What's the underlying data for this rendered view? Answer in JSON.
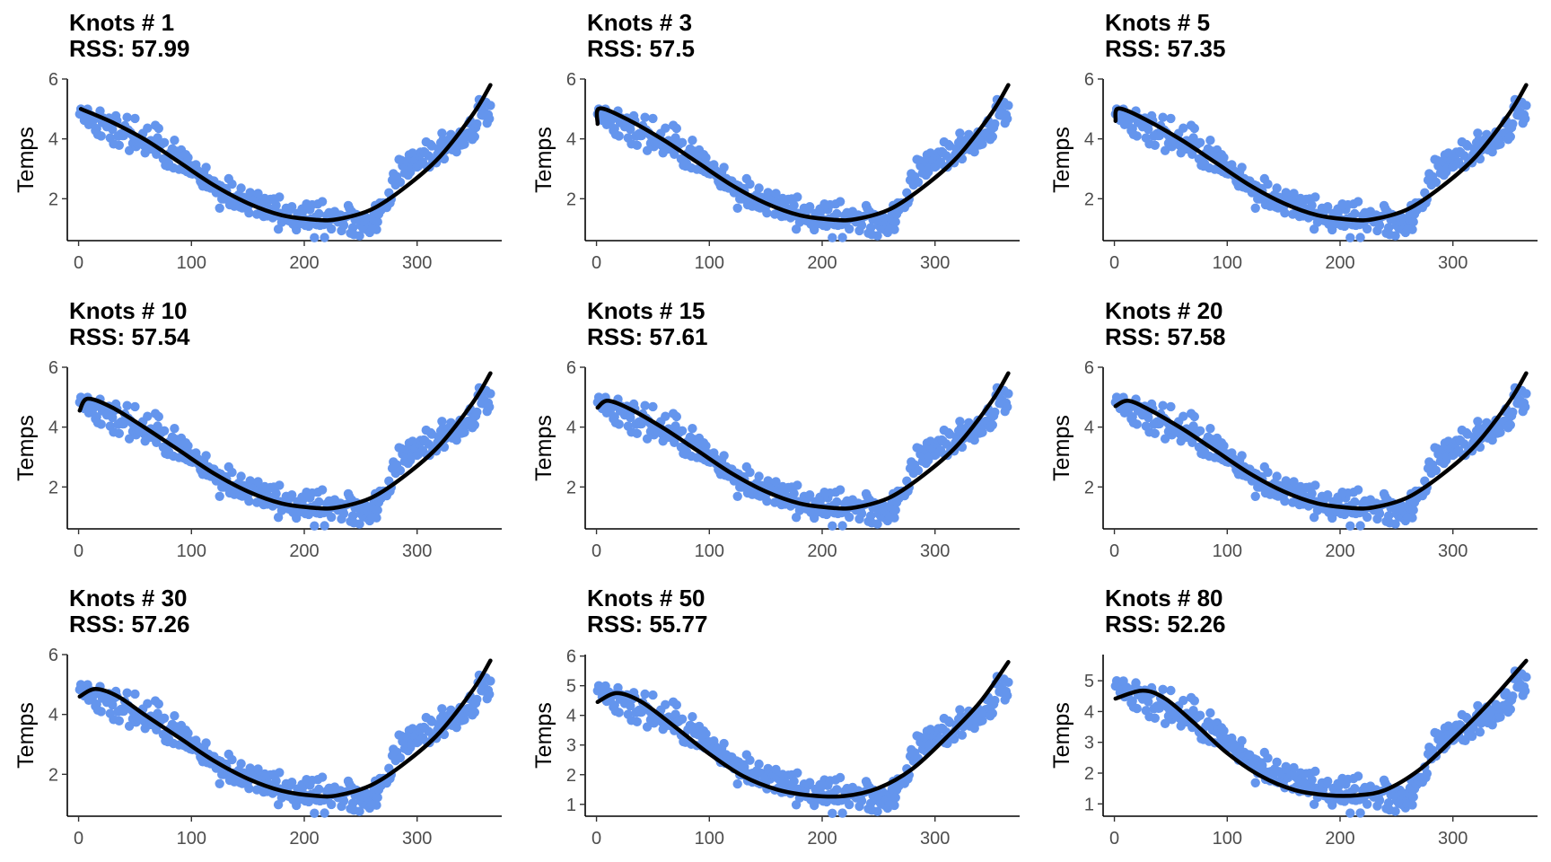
{
  "colors": {
    "points": "#6495ED",
    "fit": "#000000",
    "background": "#ffffff"
  },
  "chart_data": [
    {
      "type": "scatter",
      "title": "Knots # 1",
      "subtitle": "RSS: 57.99",
      "xlabel": "",
      "ylabel": "Temps",
      "xlim": [
        -10,
        375
      ],
      "ylim": [
        0.6,
        6.0
      ],
      "xticks": [
        0,
        100,
        200,
        300
      ],
      "yticks": [
        2,
        4,
        6
      ],
      "grid": false,
      "fit": {
        "x": [
          2,
          30,
          60,
          90,
          120,
          150,
          180,
          210,
          230,
          260,
          290,
          320,
          350,
          365
        ],
        "y": [
          5.0,
          4.55,
          3.95,
          3.2,
          2.45,
          1.85,
          1.45,
          1.3,
          1.32,
          1.65,
          2.4,
          3.4,
          4.85,
          5.8
        ]
      }
    },
    {
      "type": "scatter",
      "title": "Knots # 3",
      "subtitle": "RSS: 57.5",
      "xlabel": "",
      "ylabel": "Temps",
      "xlim": [
        -10,
        375
      ],
      "ylim": [
        0.6,
        6.0
      ],
      "xticks": [
        0,
        100,
        200,
        300
      ],
      "yticks": [
        2,
        4,
        6
      ],
      "grid": false,
      "fit": {
        "x": [
          1,
          3,
          30,
          60,
          90,
          120,
          150,
          180,
          210,
          230,
          260,
          290,
          320,
          350,
          365
        ],
        "y": [
          4.5,
          5.02,
          4.6,
          3.95,
          3.2,
          2.45,
          1.85,
          1.45,
          1.3,
          1.32,
          1.65,
          2.4,
          3.4,
          4.85,
          5.8
        ]
      }
    },
    {
      "type": "scatter",
      "title": "Knots # 5",
      "subtitle": "RSS: 57.35",
      "xlabel": "",
      "ylabel": "Temps",
      "xlim": [
        -10,
        375
      ],
      "ylim": [
        0.6,
        6.0
      ],
      "xticks": [
        0,
        100,
        200,
        300
      ],
      "yticks": [
        2,
        4,
        6
      ],
      "grid": false,
      "fit": {
        "x": [
          1,
          4,
          30,
          60,
          90,
          120,
          150,
          180,
          210,
          230,
          260,
          290,
          320,
          350,
          365
        ],
        "y": [
          4.6,
          5.02,
          4.6,
          3.95,
          3.2,
          2.45,
          1.85,
          1.45,
          1.3,
          1.32,
          1.65,
          2.4,
          3.4,
          4.85,
          5.8
        ]
      }
    },
    {
      "type": "scatter",
      "title": "Knots # 10",
      "subtitle": "RSS: 57.54",
      "xlabel": "",
      "ylabel": "Temps",
      "xlim": [
        -10,
        375
      ],
      "ylim": [
        0.6,
        6.0
      ],
      "xticks": [
        0,
        100,
        200,
        300
      ],
      "yticks": [
        2,
        4,
        6
      ],
      "grid": false,
      "fit": {
        "x": [
          1,
          8,
          30,
          60,
          90,
          120,
          150,
          180,
          210,
          230,
          260,
          290,
          320,
          350,
          365
        ],
        "y": [
          4.55,
          4.95,
          4.65,
          3.95,
          3.2,
          2.45,
          1.85,
          1.45,
          1.3,
          1.32,
          1.65,
          2.4,
          3.4,
          4.85,
          5.8
        ]
      }
    },
    {
      "type": "scatter",
      "title": "Knots # 15",
      "subtitle": "RSS: 57.61",
      "xlabel": "",
      "ylabel": "Temps",
      "xlim": [
        -10,
        375
      ],
      "ylim": [
        0.6,
        6.0
      ],
      "xticks": [
        0,
        100,
        200,
        300
      ],
      "yticks": [
        2,
        4,
        6
      ],
      "grid": false,
      "fit": {
        "x": [
          1,
          10,
          30,
          60,
          90,
          120,
          150,
          180,
          210,
          230,
          260,
          290,
          320,
          350,
          365
        ],
        "y": [
          4.65,
          4.88,
          4.6,
          3.95,
          3.2,
          2.45,
          1.85,
          1.45,
          1.3,
          1.32,
          1.65,
          2.4,
          3.4,
          4.85,
          5.8
        ]
      }
    },
    {
      "type": "scatter",
      "title": "Knots # 20",
      "subtitle": "RSS: 57.58",
      "xlabel": "",
      "ylabel": "Temps",
      "xlim": [
        -10,
        375
      ],
      "ylim": [
        0.6,
        6.0
      ],
      "xticks": [
        0,
        100,
        200,
        300
      ],
      "yticks": [
        2,
        4,
        6
      ],
      "grid": false,
      "fit": {
        "x": [
          1,
          12,
          30,
          60,
          90,
          120,
          150,
          180,
          210,
          230,
          260,
          290,
          320,
          350,
          365
        ],
        "y": [
          4.7,
          4.88,
          4.6,
          3.95,
          3.2,
          2.45,
          1.85,
          1.45,
          1.3,
          1.32,
          1.65,
          2.4,
          3.4,
          4.85,
          5.8
        ]
      }
    },
    {
      "type": "scatter",
      "title": "Knots # 30",
      "subtitle": "RSS: 57.26",
      "xlabel": "",
      "ylabel": "Temps",
      "xlim": [
        -10,
        375
      ],
      "ylim": [
        0.6,
        6.0
      ],
      "xticks": [
        0,
        100,
        200,
        300
      ],
      "yticks": [
        2,
        4,
        6
      ],
      "grid": false,
      "fit": {
        "x": [
          1,
          15,
          35,
          60,
          90,
          120,
          150,
          180,
          210,
          230,
          260,
          290,
          320,
          350,
          365
        ],
        "y": [
          4.6,
          4.85,
          4.6,
          3.95,
          3.2,
          2.45,
          1.85,
          1.45,
          1.28,
          1.3,
          1.65,
          2.4,
          3.4,
          4.85,
          5.8
        ]
      }
    },
    {
      "type": "scatter",
      "title": "Knots # 50",
      "subtitle": "RSS: 55.77",
      "xlabel": "",
      "ylabel": "Temps",
      "xlim": [
        -10,
        375
      ],
      "ylim": [
        0.6,
        6.05
      ],
      "xticks": [
        0,
        100,
        200,
        300
      ],
      "yticks": [
        1,
        2,
        3,
        4,
        5,
        6
      ],
      "grid": false,
      "fit": {
        "x": [
          1,
          18,
          40,
          70,
          100,
          130,
          160,
          190,
          220,
          250,
          280,
          310,
          340,
          365
        ],
        "y": [
          4.45,
          4.75,
          4.45,
          3.6,
          2.7,
          1.95,
          1.5,
          1.3,
          1.28,
          1.55,
          2.2,
          3.25,
          4.45,
          5.8
        ]
      }
    },
    {
      "type": "scatter",
      "title": "Knots # 80",
      "subtitle": "RSS: 52.26",
      "xlabel": "",
      "ylabel": "Temps",
      "xlim": [
        -10,
        375
      ],
      "ylim": [
        0.6,
        5.85
      ],
      "xticks": [
        0,
        100,
        200,
        300
      ],
      "yticks": [
        1,
        2,
        3,
        4,
        5
      ],
      "grid": false,
      "fit": {
        "x": [
          1,
          25,
          45,
          70,
          100,
          130,
          160,
          190,
          215,
          240,
          270,
          300,
          330,
          365
        ],
        "y": [
          4.42,
          4.68,
          4.42,
          3.65,
          2.65,
          1.9,
          1.45,
          1.28,
          1.28,
          1.45,
          2.1,
          3.1,
          4.2,
          5.65
        ]
      }
    }
  ]
}
